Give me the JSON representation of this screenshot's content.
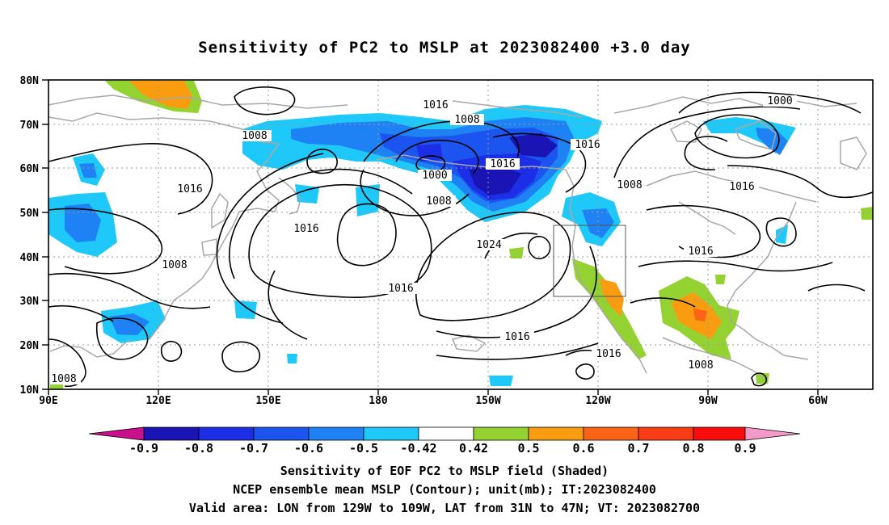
{
  "title": "Sensitivity of PC2 to MSLP at 2023082400 +3.0 day",
  "lat_labels": [
    "80N",
    "70N",
    "60N",
    "50N",
    "40N",
    "30N",
    "20N",
    "10N"
  ],
  "lon_labels": [
    "90E",
    "120E",
    "150E",
    "180",
    "150W",
    "120W",
    "90W",
    "60W"
  ],
  "contour_labels": [
    "1016",
    "1008",
    "1000",
    "1016",
    "1008",
    "1016",
    "1024",
    "1016",
    "1016",
    "1008",
    "1016",
    "1008",
    "1016",
    "1016",
    "1008",
    "1000",
    "1016",
    "1016",
    "1008",
    "1008"
  ],
  "colorbar": {
    "labels": [
      "-0.9",
      "-0.8",
      "-0.7",
      "-0.6",
      "-0.5",
      "-0.42",
      "0.42",
      "0.5",
      "0.6",
      "0.7",
      "0.8",
      "0.9"
    ],
    "colors": [
      "#c8108c",
      "#1a14b4",
      "#1c2ee6",
      "#1c54f0",
      "#1e82f4",
      "#1ec8f8",
      "#ffffff",
      "#94d232",
      "#fa9c10",
      "#fa6414",
      "#fa3c14",
      "#fa0c0c",
      "#f49ac8"
    ]
  },
  "captions": [
    "Sensitivity of EOF PC2 to MSLP field (Shaded)",
    "NCEP ensemble mean MSLP (Contour); unit(mb); IT:2023082400",
    "Valid area: LON from 129W to 109W, LAT from 31N to 47N; VT: 2023082700"
  ]
}
